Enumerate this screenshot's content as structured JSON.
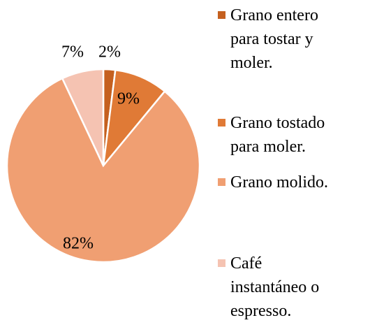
{
  "chart_data": {
    "type": "pie",
    "categories": [
      "Grano entero para tostar y moler.",
      "Grano tostado para moler.",
      "Grano molido.",
      "Café instantáneo o espresso."
    ],
    "values": [
      2,
      9,
      82,
      7
    ],
    "value_labels": [
      "2%",
      "9%",
      "82%",
      "7%"
    ],
    "colors": [
      "#c5601f",
      "#e07a36",
      "#f09f72",
      "#f5c3b2"
    ],
    "legend": "right"
  }
}
